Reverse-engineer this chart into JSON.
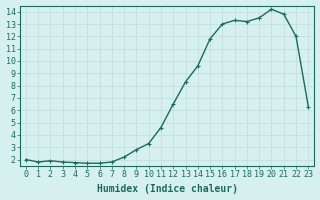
{
  "x": [
    0,
    1,
    2,
    3,
    4,
    5,
    6,
    7,
    8,
    9,
    10,
    11,
    12,
    13,
    14,
    15,
    16,
    17,
    18,
    19,
    20,
    21,
    22,
    23
  ],
  "y": [
    2.0,
    1.8,
    1.9,
    1.8,
    1.75,
    1.7,
    1.7,
    1.8,
    2.2,
    2.8,
    3.3,
    4.6,
    6.5,
    8.3,
    9.6,
    11.8,
    13.0,
    13.3,
    13.2,
    13.5,
    14.2,
    13.8,
    12.0,
    6.3
  ],
  "line_color": "#1a6b5a",
  "bg_color": "#d6f0ef",
  "grid_major_color": "#c0dedd",
  "grid_minor_color": "#c0dedd",
  "xlabel": "Humidex (Indice chaleur)",
  "xlim": [
    -0.5,
    23.5
  ],
  "ylim": [
    1.5,
    14.5
  ],
  "yticks": [
    2,
    3,
    4,
    5,
    6,
    7,
    8,
    9,
    10,
    11,
    12,
    13,
    14
  ],
  "xticks": [
    0,
    1,
    2,
    3,
    4,
    5,
    6,
    7,
    8,
    9,
    10,
    11,
    12,
    13,
    14,
    15,
    16,
    17,
    18,
    19,
    20,
    21,
    22,
    23
  ],
  "font_size": 6,
  "marker_size": 3,
  "line_width": 1.0
}
